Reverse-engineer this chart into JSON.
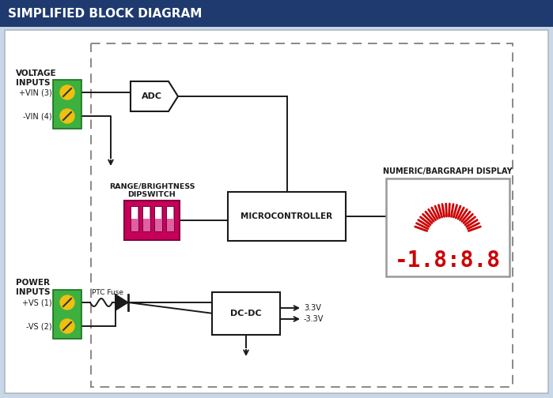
{
  "title": "SIMPLIFIED BLOCK DIAGRAM",
  "title_bg": "#1e3a6e",
  "title_color": "#ffffff",
  "bg_color": "#ffffff",
  "outer_bg": "#c8d8e8",
  "panel_edge": "#b0b8c0",
  "dashed_color": "#888888",
  "voltage_inputs_label": "VOLTAGE\nINPUTS",
  "power_inputs_label": "POWER\nINPUTS",
  "vin_plus_label": "+VIN (3)",
  "vin_minus_label": "-VIN (4)",
  "vs_plus_label": "+VS (1)",
  "vs_minus_label": "-VS (2)",
  "adc_label": "ADC",
  "mc_label": "MICROCONTROLLER",
  "dcdc_label": "DC-DC",
  "dip_label": "RANGE/BRIGHTNESS\nDIPSWITCH",
  "display_label": "NUMERIC/BARGRAPH DISPLAY",
  "ptc_label": "PTC Fuse",
  "v33_label": "3.3V",
  "vm33_label": "-3.3V",
  "green": "#3db040",
  "green_dark": "#1a7020",
  "yellow": "#f0c010",
  "red": "#cc0000",
  "magenta": "#c8005a",
  "magenta_dark": "#800040",
  "dark": "#1a1a1a",
  "wire": "#1a1a1a"
}
